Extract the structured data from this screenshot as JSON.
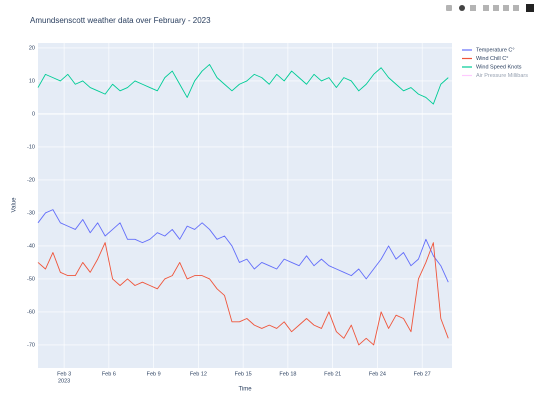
{
  "chart_data": {
    "type": "line",
    "title": "Amundsenscott weather data over February - 2023",
    "x_label": "Time",
    "y_label": "Value",
    "x": [
      "2023-02-01T06:00",
      "2023-02-01T18:00",
      "2023-02-02T06:00",
      "2023-02-02T18:00",
      "2023-02-03T06:00",
      "2023-02-03T18:00",
      "2023-02-04T06:00",
      "2023-02-04T18:00",
      "2023-02-05T06:00",
      "2023-02-05T18:00",
      "2023-02-06T06:00",
      "2023-02-06T18:00",
      "2023-02-07T06:00",
      "2023-02-07T18:00",
      "2023-02-08T06:00",
      "2023-02-08T18:00",
      "2023-02-09T06:00",
      "2023-02-09T18:00",
      "2023-02-10T06:00",
      "2023-02-10T18:00",
      "2023-02-11T06:00",
      "2023-02-11T18:00",
      "2023-02-12T06:00",
      "2023-02-12T18:00",
      "2023-02-13T06:00",
      "2023-02-13T18:00",
      "2023-02-14T06:00",
      "2023-02-14T18:00",
      "2023-02-15T06:00",
      "2023-02-15T18:00",
      "2023-02-16T06:00",
      "2023-02-16T18:00",
      "2023-02-17T06:00",
      "2023-02-17T18:00",
      "2023-02-18T06:00",
      "2023-02-18T18:00",
      "2023-02-19T06:00",
      "2023-02-19T18:00",
      "2023-02-20T06:00",
      "2023-02-20T18:00",
      "2023-02-21T06:00",
      "2023-02-21T18:00",
      "2023-02-22T06:00",
      "2023-02-22T18:00",
      "2023-02-23T06:00",
      "2023-02-23T18:00",
      "2023-02-24T06:00",
      "2023-02-24T18:00",
      "2023-02-25T06:00",
      "2023-02-25T18:00",
      "2023-02-26T06:00",
      "2023-02-26T18:00",
      "2023-02-27T06:00",
      "2023-02-27T18:00",
      "2023-02-28T06:00",
      "2023-02-28T18:00"
    ],
    "series": [
      {
        "name": "Temperature C°",
        "color": "#636efa",
        "values": [
          -33,
          -30,
          -29,
          -33,
          -34,
          -35,
          -32,
          -36,
          -33,
          -37,
          -35,
          -33,
          -38,
          -38,
          -39,
          -38,
          -36,
          -37,
          -35,
          -38,
          -34,
          -35,
          -33,
          -35,
          -38,
          -37,
          -40,
          -45,
          -44,
          -47,
          -45,
          -46,
          -47,
          -44,
          -45,
          -46,
          -43,
          -46,
          -44,
          -46,
          -47,
          -48,
          -49,
          -47,
          -50,
          -47,
          -44,
          -40,
          -44,
          -42,
          -46,
          -44,
          -38,
          -43,
          -46,
          -51
        ]
      },
      {
        "name": "Wind Chill C°",
        "color": "#ef553b",
        "values": [
          -45,
          -47,
          -42,
          -48,
          -49,
          -49,
          -45,
          -48,
          -44,
          -39,
          -50,
          -52,
          -50,
          -52,
          -51,
          -52,
          -53,
          -50,
          -49,
          -45,
          -50,
          -49,
          -49,
          -50,
          -53,
          -55,
          -63,
          -63,
          -62,
          -64,
          -65,
          -64,
          -65,
          -63,
          -66,
          -64,
          -62,
          -64,
          -65,
          -60,
          -66,
          -68,
          -64,
          -70,
          -68,
          -70,
          -60,
          -65,
          -61,
          -62,
          -66,
          -50,
          -45,
          -39,
          -62,
          -68
        ]
      },
      {
        "name": "Wind Speed Knots",
        "color": "#00cc96",
        "values": [
          8,
          12,
          11,
          10,
          12,
          9,
          10,
          8,
          7,
          6,
          9,
          7,
          8,
          10,
          9,
          8,
          7,
          11,
          13,
          9,
          5,
          10,
          13,
          15,
          11,
          9,
          7,
          9,
          10,
          12,
          11,
          9,
          12,
          10,
          13,
          11,
          9,
          12,
          10,
          11,
          8,
          11,
          10,
          7,
          9,
          12,
          14,
          11,
          9,
          7,
          8,
          6,
          5,
          3,
          9,
          11
        ]
      },
      {
        "name": "Air Pressure Millibars",
        "color": "#ff97ff",
        "visible": "legendonly"
      }
    ],
    "xlim": [
      "2023-02-01T06:00",
      "2023-03-01T00:00"
    ],
    "xticks": [
      {
        "value": "2023-02-03T00:00",
        "label": "Feb 3"
      },
      {
        "value": "2023-02-06T00:00",
        "label": "Feb 6"
      },
      {
        "value": "2023-02-09T00:00",
        "label": "Feb 9"
      },
      {
        "value": "2023-02-12T00:00",
        "label": "Feb 12"
      },
      {
        "value": "2023-02-15T00:00",
        "label": "Feb 15"
      },
      {
        "value": "2023-02-18T00:00",
        "label": "Feb 18"
      },
      {
        "value": "2023-02-21T00:00",
        "label": "Feb 21"
      },
      {
        "value": "2023-02-24T00:00",
        "label": "Feb 24"
      },
      {
        "value": "2023-02-27T00:00",
        "label": "Feb 27"
      }
    ],
    "x_year": "2023",
    "ylim": [
      -77,
      21.5
    ],
    "yticks": [
      20,
      10,
      0,
      -10,
      -20,
      -30,
      -40,
      -50,
      -60,
      -70
    ],
    "grid": true,
    "legend": "right"
  }
}
